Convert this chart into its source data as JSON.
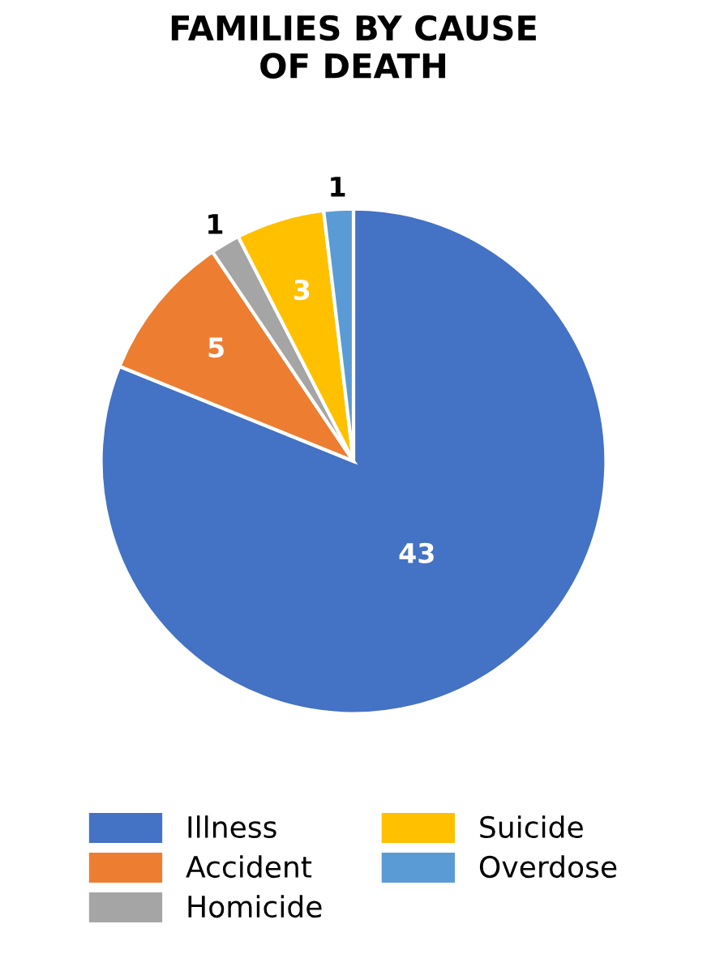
{
  "chart_data": {
    "type": "pie",
    "title": "FAMILIES BY CAUSE\nOF DEATH",
    "categories": [
      "Illness",
      "Accident",
      "Homicide",
      "Suicide",
      "Overdose"
    ],
    "values": [
      43,
      5,
      1,
      3,
      1
    ],
    "colors": [
      "#4472c4",
      "#ed7d31",
      "#a5a5a5",
      "#ffc000",
      "#5b9bd5"
    ],
    "data_labels": true,
    "legend": "bottom"
  }
}
